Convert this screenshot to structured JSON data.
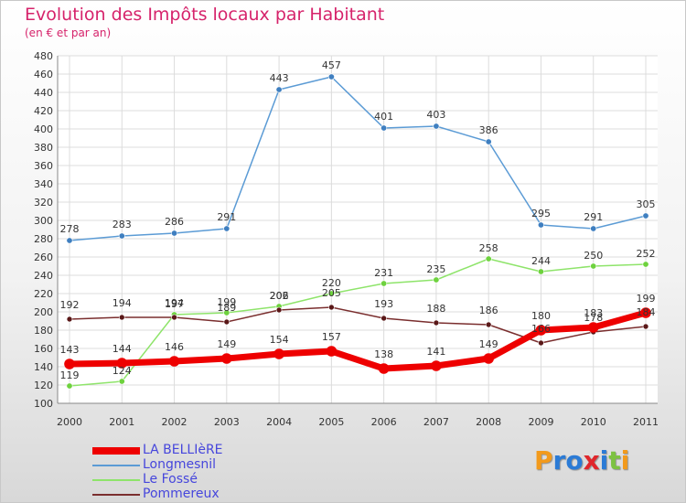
{
  "chart_data": {
    "type": "line",
    "title": "Evolution des Impôts locaux par Habitant",
    "subtitle": "(en € et par an)",
    "xlabel": "",
    "ylabel": "",
    "categories": [
      "2000",
      "2001",
      "2002",
      "2003",
      "2004",
      "2005",
      "2006",
      "2007",
      "2008",
      "2009",
      "2010",
      "2011"
    ],
    "ylim": [
      100,
      480
    ],
    "yticks": [
      100,
      120,
      140,
      160,
      180,
      200,
      220,
      240,
      260,
      280,
      300,
      320,
      340,
      360,
      380,
      400,
      420,
      440,
      460,
      480
    ],
    "grid": true,
    "legend_position": "bottom-left",
    "series": [
      {
        "name": "Longmesnil",
        "color": "#5b9bd5",
        "marker": "#3f7fc0",
        "values": [
          278,
          283,
          286,
          291,
          443,
          457,
          401,
          403,
          386,
          295,
          291,
          305
        ]
      },
      {
        "name": "Le Fossé",
        "color": "#8ee46a",
        "marker": "#6ed23e",
        "values": [
          119,
          124,
          197,
          199,
          206,
          220,
          231,
          235,
          258,
          244,
          250,
          252
        ]
      },
      {
        "name": "Pommereux",
        "color": "#7a2e2e",
        "marker": "#5a1818",
        "values": [
          192,
          194,
          194,
          189,
          202,
          205,
          193,
          188,
          186,
          166,
          178,
          184
        ]
      },
      {
        "name": "LA BELLIèRE",
        "color": "#ee0000",
        "marker": "#ee0000",
        "values": [
          143,
          144,
          146,
          149,
          154,
          157,
          138,
          141,
          149,
          180,
          183,
          199
        ]
      }
    ],
    "data_labels": {
      "Longmesnil": [
        "278",
        "283",
        "286",
        "291",
        "443",
        "457",
        "401",
        "403",
        "386",
        "295",
        "291",
        "305"
      ],
      "Le Fossé": [
        "119",
        "124",
        "197",
        "199",
        "206",
        "220",
        "231",
        "235",
        "258",
        "244",
        "250",
        "252"
      ],
      "Pommereux": [
        "192",
        "194",
        "194",
        "189",
        "202",
        "205",
        "193",
        "188",
        "186",
        "166",
        "178",
        "184"
      ],
      "LA BELLIèRE": [
        "143",
        "144",
        "146",
        "149",
        "154",
        "157",
        "138",
        "141",
        "149",
        "180",
        "183",
        "199"
      ]
    }
  },
  "legend": {
    "items": [
      {
        "label": "LA BELLIèRE",
        "color": "#ee0000"
      },
      {
        "label": "Longmesnil",
        "color": "#5b9bd5"
      },
      {
        "label": "Le Fossé",
        "color": "#8ee46a"
      },
      {
        "label": "Pommereux",
        "color": "#7a2e2e"
      }
    ]
  },
  "logo": {
    "text": "Proxiti",
    "letters": [
      {
        "ch": "P",
        "color": "#f29a1c"
      },
      {
        "ch": "r",
        "color": "#2b7bd6"
      },
      {
        "ch": "o",
        "color": "#2b7bd6"
      },
      {
        "ch": "x",
        "color": "#e0262b"
      },
      {
        "ch": "i",
        "color": "#2b7bd6"
      },
      {
        "ch": "t",
        "color": "#7dc242"
      },
      {
        "ch": "i",
        "color": "#f29a1c"
      }
    ]
  }
}
